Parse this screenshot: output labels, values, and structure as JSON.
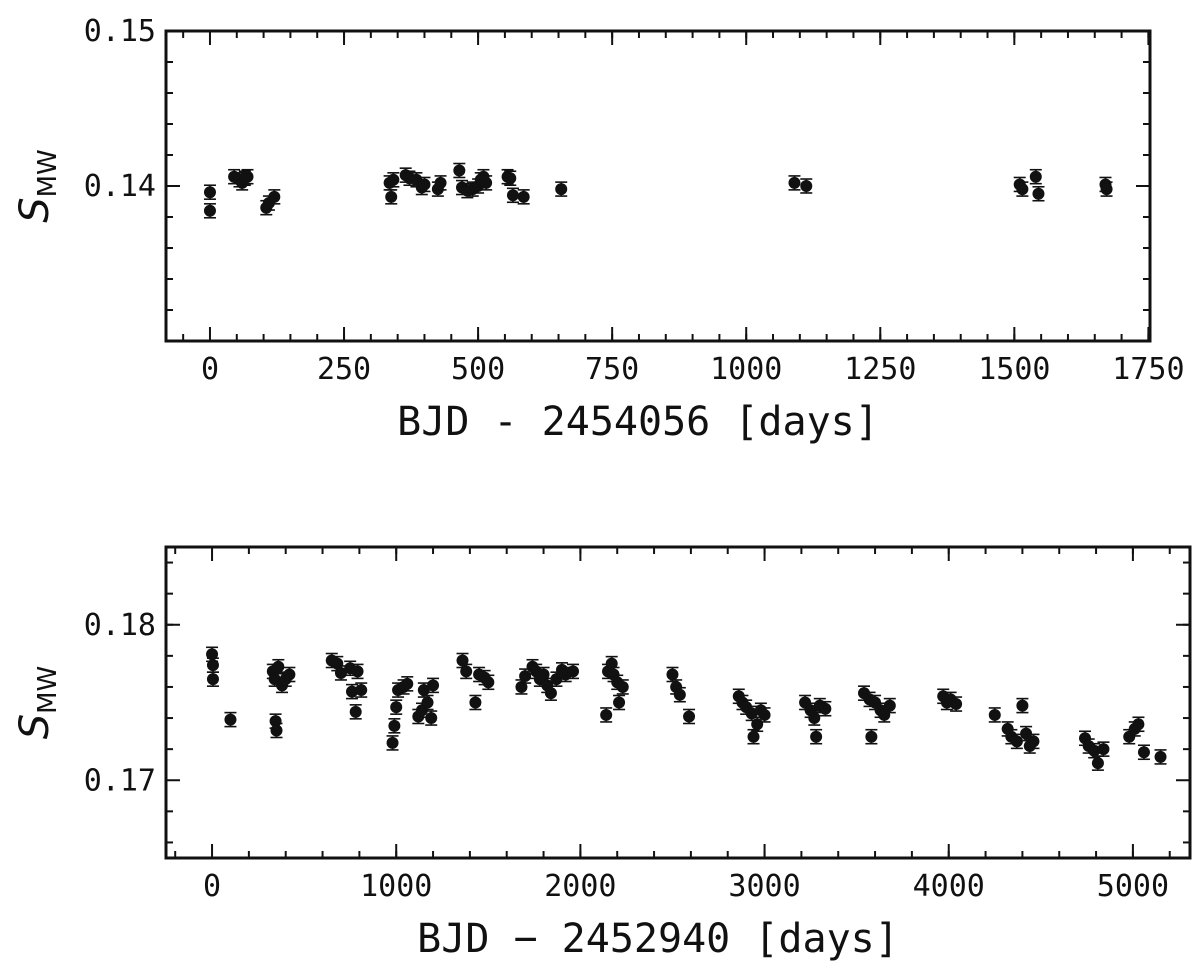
{
  "chart_data": [
    {
      "type": "scatter",
      "xlabel": "BJD - 2454056 [days]",
      "ylabel": "S",
      "ylabel_sub": "MW",
      "xlim": [
        -82,
        1753
      ],
      "ylim": [
        0.13,
        0.15
      ],
      "xticks": [
        0,
        250,
        500,
        750,
        1000,
        1250,
        1500,
        1750
      ],
      "yticks": [
        0.14,
        0.15
      ],
      "color": "#111111",
      "yerr": 0.00045,
      "x": [
        0,
        0,
        45,
        55,
        60,
        65,
        70,
        105,
        110,
        120,
        335,
        338,
        342,
        365,
        372,
        385,
        395,
        400,
        425,
        430,
        465,
        470,
        480,
        490,
        500,
        505,
        510,
        515,
        555,
        560,
        565,
        585,
        655,
        1090,
        1112,
        1510,
        1515,
        1540,
        1545,
        1670,
        1672
      ],
      "y": [
        0.1396,
        0.1384,
        0.1406,
        0.1404,
        0.1402,
        0.1405,
        0.1406,
        0.1386,
        0.1389,
        0.1393,
        0.1402,
        0.1393,
        0.1404,
        0.1407,
        0.1405,
        0.1404,
        0.1399,
        0.1401,
        0.1398,
        0.1402,
        0.141,
        0.1399,
        0.1397,
        0.1398,
        0.14,
        0.1404,
        0.1406,
        0.1402,
        0.1406,
        0.1405,
        0.1394,
        0.1393,
        0.1398,
        0.1402,
        0.14,
        0.1401,
        0.1398,
        0.1406,
        0.1395,
        0.1401,
        0.1398
      ]
    },
    {
      "type": "scatter",
      "xlabel": "BJD − 2452940 [days]",
      "ylabel": "S",
      "ylabel_sub": "MW",
      "xlim": [
        -250,
        5310
      ],
      "ylim": [
        0.165,
        0.185
      ],
      "xticks": [
        0,
        1000,
        2000,
        3000,
        4000,
        5000
      ],
      "yticks": [
        0.17,
        0.18
      ],
      "color": "#111111",
      "yerr": 0.00045,
      "x": [
        0,
        5,
        5,
        100,
        330,
        340,
        345,
        350,
        360,
        380,
        400,
        420,
        650,
        680,
        700,
        750,
        760,
        780,
        790,
        810,
        980,
        990,
        1000,
        1010,
        1040,
        1060,
        1120,
        1140,
        1150,
        1170,
        1190,
        1200,
        1360,
        1380,
        1430,
        1450,
        1480,
        1500,
        1680,
        1700,
        1740,
        1760,
        1780,
        1800,
        1820,
        1840,
        1870,
        1900,
        1920,
        1960,
        2140,
        2150,
        2170,
        2180,
        2200,
        2210,
        2230,
        2500,
        2520,
        2540,
        2590,
        2860,
        2880,
        2900,
        2930,
        2940,
        2960,
        2980,
        3000,
        3220,
        3250,
        3270,
        3280,
        3300,
        3330,
        3540,
        3570,
        3580,
        3600,
        3630,
        3650,
        3680,
        3970,
        3990,
        4010,
        4040,
        4250,
        4320,
        4340,
        4370,
        4400,
        4420,
        4440,
        4460,
        4740,
        4760,
        4790,
        4810,
        4840,
        4980,
        5010,
        5030,
        5060,
        5150
      ],
      "y": [
        0.1781,
        0.1774,
        0.1765,
        0.1739,
        0.177,
        0.1765,
        0.1738,
        0.1732,
        0.1773,
        0.1761,
        0.1765,
        0.1768,
        0.1777,
        0.1775,
        0.1769,
        0.1772,
        0.1757,
        0.1744,
        0.177,
        0.1758,
        0.1724,
        0.1735,
        0.1747,
        0.1758,
        0.176,
        0.1762,
        0.1741,
        0.1745,
        0.1758,
        0.175,
        0.174,
        0.1761,
        0.1777,
        0.177,
        0.175,
        0.1768,
        0.1766,
        0.1763,
        0.176,
        0.1767,
        0.1773,
        0.177,
        0.1765,
        0.1768,
        0.1761,
        0.1756,
        0.1765,
        0.1771,
        0.1768,
        0.177,
        0.1742,
        0.177,
        0.1775,
        0.1768,
        0.1763,
        0.175,
        0.176,
        0.1768,
        0.176,
        0.1755,
        0.1741,
        0.1754,
        0.175,
        0.1747,
        0.1743,
        0.1728,
        0.1736,
        0.1745,
        0.1742,
        0.175,
        0.1745,
        0.174,
        0.1728,
        0.1748,
        0.1746,
        0.1756,
        0.1752,
        0.1728,
        0.175,
        0.1745,
        0.1742,
        0.1748,
        0.1754,
        0.175,
        0.1752,
        0.1749,
        0.1742,
        0.1733,
        0.1728,
        0.1725,
        0.1748,
        0.173,
        0.1722,
        0.1725,
        0.1727,
        0.1722,
        0.1719,
        0.1711,
        0.172,
        0.1728,
        0.1733,
        0.1736,
        0.1718,
        0.1715
      ]
    }
  ]
}
